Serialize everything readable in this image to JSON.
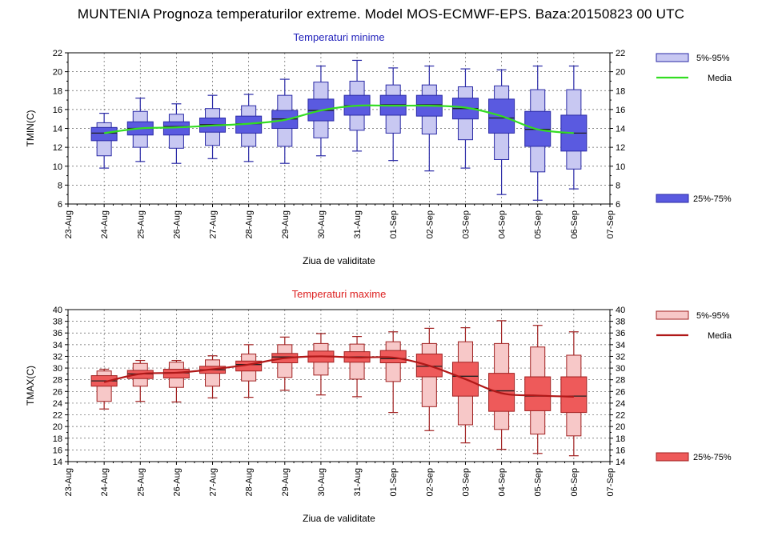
{
  "title": "MUNTENIA  Prognoza temperaturilor extreme.  Model MOS-ECMWF-EPS. Baza:20150823 00 UTC",
  "colors": {
    "min_outer": "#c8c8f2",
    "min_inner": "#5a5ae0",
    "min_stroke": "#2a2aa6",
    "min_mean": "#33dd22",
    "min_title": "#2222bb",
    "max_outer": "#f7c8c8",
    "max_inner": "#ee5a5a",
    "max_stroke": "#a02020",
    "max_mean": "#b01818",
    "max_title": "#dd2222"
  },
  "chart_data": [
    {
      "type": "box",
      "title": "Temperaturi minime",
      "ylabel": "TMIN(C)",
      "xlabel": "Ziua de validitate",
      "ylim": [
        6,
        22
      ],
      "yticks": [
        6,
        8,
        10,
        12,
        14,
        16,
        18,
        20,
        22
      ],
      "xtick_labels": [
        "23-Aug",
        "24-Aug",
        "25-Aug",
        "26-Aug",
        "27-Aug",
        "28-Aug",
        "29-Aug",
        "30-Aug",
        "31-Aug",
        "01-Sep",
        "02-Sep",
        "03-Sep",
        "04-Sep",
        "05-Sep",
        "06-Sep",
        "07-Sep"
      ],
      "categories": [
        "24-Aug",
        "25-Aug",
        "26-Aug",
        "27-Aug",
        "28-Aug",
        "29-Aug",
        "30-Aug",
        "31-Aug",
        "01-Sep",
        "02-Sep",
        "03-Sep",
        "04-Sep",
        "05-Sep",
        "06-Sep"
      ],
      "whisker_min": [
        9.8,
        10.5,
        10.3,
        10.8,
        10.5,
        10.3,
        11.1,
        11.6,
        10.6,
        9.5,
        9.8,
        7.0,
        6.4,
        7.6
      ],
      "p5": [
        11.1,
        12.0,
        11.9,
        12.2,
        12.1,
        12.1,
        13.0,
        13.8,
        13.5,
        13.4,
        12.8,
        10.7,
        9.4,
        9.7
      ],
      "p25": [
        12.7,
        13.3,
        13.3,
        13.6,
        13.5,
        14.0,
        14.8,
        15.4,
        15.4,
        15.3,
        15.0,
        13.5,
        12.1,
        11.6
      ],
      "median": [
        13.5,
        14.0,
        14.2,
        14.4,
        14.5,
        15.0,
        15.9,
        16.4,
        16.5,
        16.5,
        16.1,
        15.1,
        13.9,
        13.5
      ],
      "p75": [
        14.1,
        14.7,
        14.7,
        15.1,
        15.3,
        15.9,
        17.1,
        17.5,
        17.5,
        17.5,
        17.2,
        17.1,
        15.8,
        15.4
      ],
      "p95": [
        14.6,
        15.8,
        15.5,
        16.1,
        16.4,
        17.5,
        18.9,
        19.0,
        18.6,
        18.6,
        18.4,
        18.5,
        18.1,
        18.1
      ],
      "whisker_max": [
        15.6,
        17.2,
        16.6,
        17.5,
        17.6,
        19.2,
        20.6,
        21.2,
        20.4,
        20.6,
        20.3,
        20.2,
        20.6,
        20.6
      ],
      "mean": [
        13.5,
        14.0,
        14.1,
        14.3,
        14.5,
        14.9,
        15.9,
        16.4,
        16.4,
        16.4,
        16.2,
        15.3,
        13.9,
        13.5
      ],
      "legend": {
        "outer": "5%-95%",
        "mean": "Media",
        "inner": "25%-75%"
      }
    },
    {
      "type": "box",
      "title": "Temperaturi maxime",
      "ylabel": "TMAX(C)",
      "xlabel": "Ziua de validitate",
      "ylim": [
        14,
        40
      ],
      "yticks": [
        14,
        16,
        18,
        20,
        22,
        24,
        26,
        28,
        30,
        32,
        34,
        36,
        38,
        40
      ],
      "xtick_labels": [
        "23-Aug",
        "24-Aug",
        "25-Aug",
        "26-Aug",
        "27-Aug",
        "28-Aug",
        "29-Aug",
        "30-Aug",
        "31-Aug",
        "01-Sep",
        "02-Sep",
        "03-Sep",
        "04-Sep",
        "05-Sep",
        "06-Sep",
        "07-Sep"
      ],
      "categories": [
        "24-Aug",
        "25-Aug",
        "26-Aug",
        "27-Aug",
        "28-Aug",
        "29-Aug",
        "30-Aug",
        "31-Aug",
        "01-Sep",
        "02-Sep",
        "03-Sep",
        "04-Sep",
        "05-Sep",
        "06-Sep"
      ],
      "whisker_min": [
        23.0,
        24.3,
        24.2,
        24.9,
        25.0,
        26.2,
        25.4,
        25.1,
        22.4,
        19.3,
        17.2,
        16.1,
        15.4,
        15.0
      ],
      "p5": [
        24.3,
        26.9,
        26.7,
        26.9,
        27.8,
        28.4,
        28.8,
        28.1,
        27.7,
        23.4,
        20.3,
        19.5,
        18.7,
        18.4
      ],
      "p25": [
        26.9,
        28.2,
        28.3,
        29.1,
        29.5,
        30.9,
        31.0,
        31.0,
        30.9,
        28.5,
        25.2,
        22.6,
        22.7,
        22.4
      ],
      "median": [
        27.8,
        29.0,
        29.2,
        29.7,
        30.6,
        31.9,
        32.0,
        31.9,
        31.6,
        30.3,
        28.6,
        26.1,
        25.2,
        25.2
      ],
      "p75": [
        28.7,
        29.6,
        29.8,
        30.3,
        31.2,
        32.5,
        32.9,
        32.8,
        33.0,
        32.4,
        31.0,
        29.1,
        28.5,
        28.5
      ],
      "p95": [
        29.5,
        30.8,
        31.0,
        31.4,
        32.4,
        34.0,
        34.2,
        34.1,
        34.5,
        34.2,
        34.5,
        34.2,
        33.6,
        32.2
      ],
      "whisker_max": [
        29.8,
        31.3,
        31.3,
        32.1,
        34.0,
        35.3,
        35.9,
        35.4,
        36.2,
        36.8,
        36.9,
        38.1,
        37.3,
        36.2
      ],
      "mean": [
        27.6,
        29.0,
        29.2,
        29.8,
        30.6,
        31.7,
        32.0,
        31.8,
        31.8,
        30.4,
        28.1,
        25.7,
        25.3,
        25.1
      ],
      "legend": {
        "outer": "5%-95%",
        "mean": "Media",
        "inner": "25%-75%"
      }
    }
  ]
}
